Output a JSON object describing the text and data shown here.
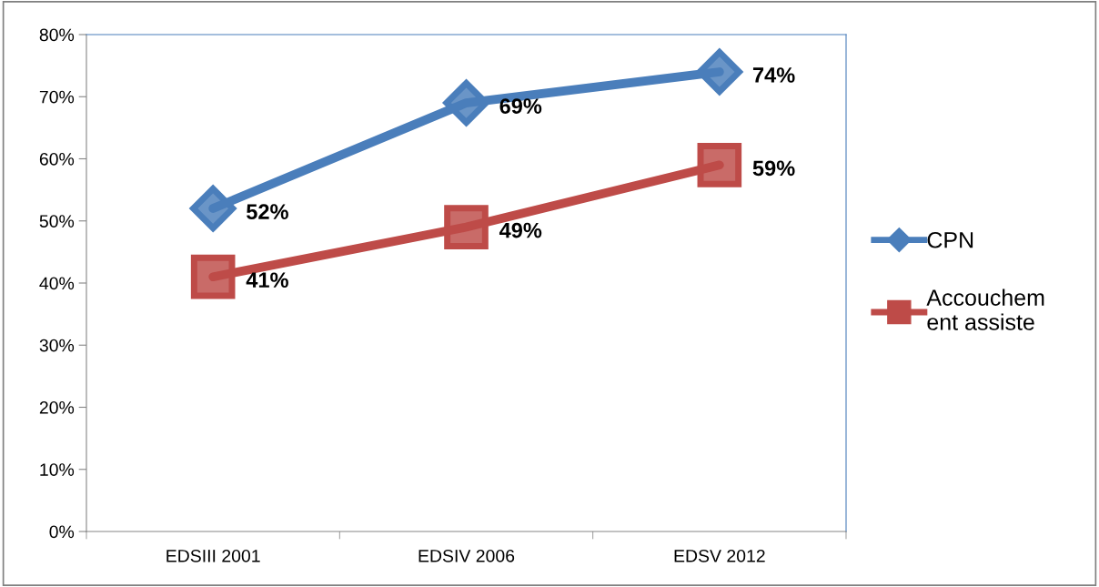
{
  "chart_data": {
    "type": "line",
    "categories": [
      "EDSIII 2001",
      "EDSIV 2006",
      "EDSV 2012"
    ],
    "series": [
      {
        "name": "CPN",
        "color": "#4a7ebb",
        "marker": "diamond",
        "values": [
          52,
          69,
          74
        ],
        "value_labels": [
          "52%",
          "69%",
          "74%"
        ]
      },
      {
        "name": "Accouchement assiste",
        "color": "#be4b48",
        "marker": "square",
        "values": [
          41,
          49,
          59
        ],
        "value_labels": [
          "41%",
          "49%",
          "59%"
        ]
      }
    ],
    "ylim": [
      0,
      80
    ],
    "yticks": [
      {
        "value": 0,
        "label": "0%"
      },
      {
        "value": 10,
        "label": "10%"
      },
      {
        "value": 20,
        "label": "20%"
      },
      {
        "value": 30,
        "label": "30%"
      },
      {
        "value": 40,
        "label": "40%"
      },
      {
        "value": 50,
        "label": "50%"
      },
      {
        "value": 60,
        "label": "60%"
      },
      {
        "value": 70,
        "label": "70%"
      },
      {
        "value": 80,
        "label": "80%"
      }
    ],
    "grid": false,
    "legend": "right",
    "line_style": "solid"
  }
}
